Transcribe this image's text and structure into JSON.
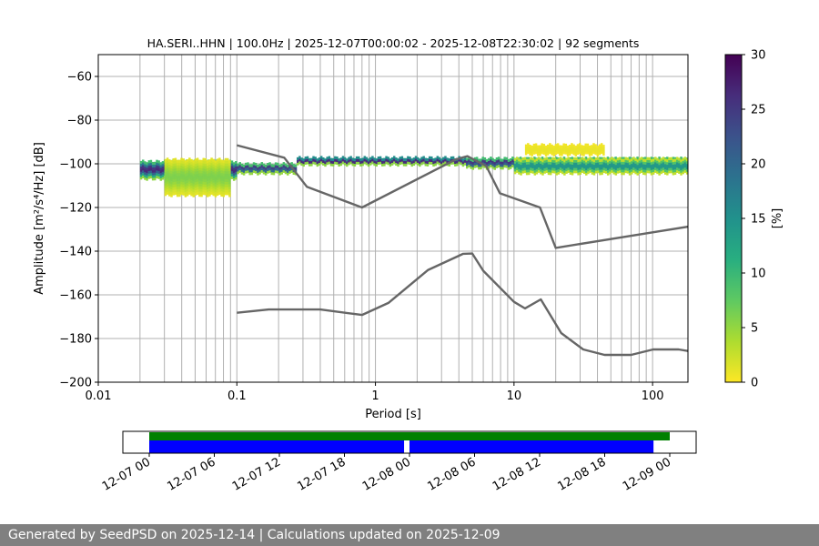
{
  "chart_data": [
    {
      "type": "heatmap",
      "title": "HA.SERI..HHN | 100.0Hz | 2025-12-07T00:00:02 - 2025-12-08T22:30:02 | 92 segments",
      "xlabel": "Period [s]",
      "ylabel": "Amplitude [m²/s⁴/Hz] [dB]",
      "xscale": "log",
      "xlim": [
        0.01,
        180
      ],
      "ylim": [
        -200,
        -50
      ],
      "x_ticks": [
        {
          "value": 0.01,
          "label": "0.01"
        },
        {
          "value": 0.1,
          "label": "0.1"
        },
        {
          "value": 1,
          "label": "1"
        },
        {
          "value": 10,
          "label": "10"
        },
        {
          "value": 100,
          "label": "100"
        }
      ],
      "y_ticks": [
        {
          "value": -60,
          "label": "−60"
        },
        {
          "value": -80,
          "label": "−80"
        },
        {
          "value": -100,
          "label": "−100"
        },
        {
          "value": -120,
          "label": "−120"
        },
        {
          "value": -140,
          "label": "−140"
        },
        {
          "value": -160,
          "label": "−160"
        },
        {
          "value": -180,
          "label": "−180"
        },
        {
          "value": -200,
          "label": "−200"
        }
      ],
      "grid": true,
      "colorbar": {
        "label": "[%]",
        "min": 0,
        "max": 30,
        "colormap": "viridis_r",
        "ticks": [
          {
            "value": 0,
            "label": "0"
          },
          {
            "value": 5,
            "label": "5"
          },
          {
            "value": 10,
            "label": "10"
          },
          {
            "value": 15,
            "label": "15"
          },
          {
            "value": 20,
            "label": "20"
          },
          {
            "value": 25,
            "label": "25"
          },
          {
            "value": 30,
            "label": "30"
          }
        ]
      },
      "series": [
        {
          "role": "noise-model-high",
          "color": "#666666",
          "points": [
            [
              0.1,
              -91.5
            ],
            [
              0.22,
              -97.2
            ],
            [
              0.32,
              -110.5
            ],
            [
              0.8,
              -120
            ],
            [
              3.8,
              -98
            ],
            [
              4.6,
              -96.5
            ],
            [
              6.3,
              -101
            ],
            [
              7.9,
              -113.5
            ],
            [
              15.4,
              -120
            ],
            [
              20,
              -138.5
            ],
            [
              180,
              -128.8
            ]
          ]
        },
        {
          "role": "noise-model-low",
          "color": "#666666",
          "points": [
            [
              0.1,
              -168.2
            ],
            [
              0.17,
              -166.7
            ],
            [
              0.4,
              -166.7
            ],
            [
              0.8,
              -169.2
            ],
            [
              1.24,
              -163.7
            ],
            [
              2.4,
              -148.6
            ],
            [
              4.3,
              -141.2
            ],
            [
              5,
              -141.1
            ],
            [
              6,
              -149
            ],
            [
              10,
              -163.2
            ],
            [
              12,
              -166.2
            ],
            [
              15.6,
              -162.1
            ],
            [
              21.9,
              -177.5
            ],
            [
              31.6,
              -185
            ],
            [
              45,
              -187.5
            ],
            [
              70,
              -187.5
            ],
            [
              101,
              -185
            ],
            [
              154,
              -185
            ],
            [
              180,
              -185.7
            ]
          ]
        }
      ],
      "density_bands": [
        {
          "x_from": 0.02,
          "x_to": 0.1,
          "y_center": -102.5,
          "y_spread": 4,
          "mode_pct": 27
        },
        {
          "x_from": 0.03,
          "x_to": 0.09,
          "y_center": -106,
          "y_spread": 8,
          "mode_pct": 6
        },
        {
          "x_from": 0.1,
          "x_to": 0.27,
          "y_center": -102,
          "y_spread": 2,
          "mode_pct": 26
        },
        {
          "x_from": 0.27,
          "x_to": 4.5,
          "y_center": -98.5,
          "y_spread": 1.5,
          "mode_pct": 28
        },
        {
          "x_from": 4.5,
          "x_to": 180,
          "y_center": -99.5,
          "y_spread": 2,
          "mode_pct": 27
        },
        {
          "x_from": 10,
          "x_to": 180,
          "y_center": -101,
          "y_spread": 3,
          "mode_pct": 15
        },
        {
          "x_from": 12,
          "x_to": 45,
          "y_center": -93.5,
          "y_spread": 3,
          "mode_pct": 1
        }
      ]
    },
    {
      "type": "timeline",
      "x_range": [
        "2025-12-07 00:00",
        "2025-12-09 04:00"
      ],
      "tick_labels": [
        "12-07 00",
        "12-07 06",
        "12-07 12",
        "12-07 18",
        "12-08 00",
        "12-08 06",
        "12-08 12",
        "12-08 18",
        "12-09 00"
      ],
      "bars": [
        {
          "color": "#008000",
          "intervals": [
            [
              "2025-12-07 00:00",
              "2025-12-09 00:00"
            ]
          ]
        },
        {
          "color": "#0000ff",
          "intervals": [
            [
              "2025-12-07 00:00",
              "2025-12-07 23:30"
            ],
            [
              "2025-12-08 00:00",
              "2025-12-08 22:30"
            ]
          ]
        }
      ]
    }
  ],
  "footer": "Generated by SeedPSD on 2025-12-14 | Calculations updated on 2025-12-09"
}
